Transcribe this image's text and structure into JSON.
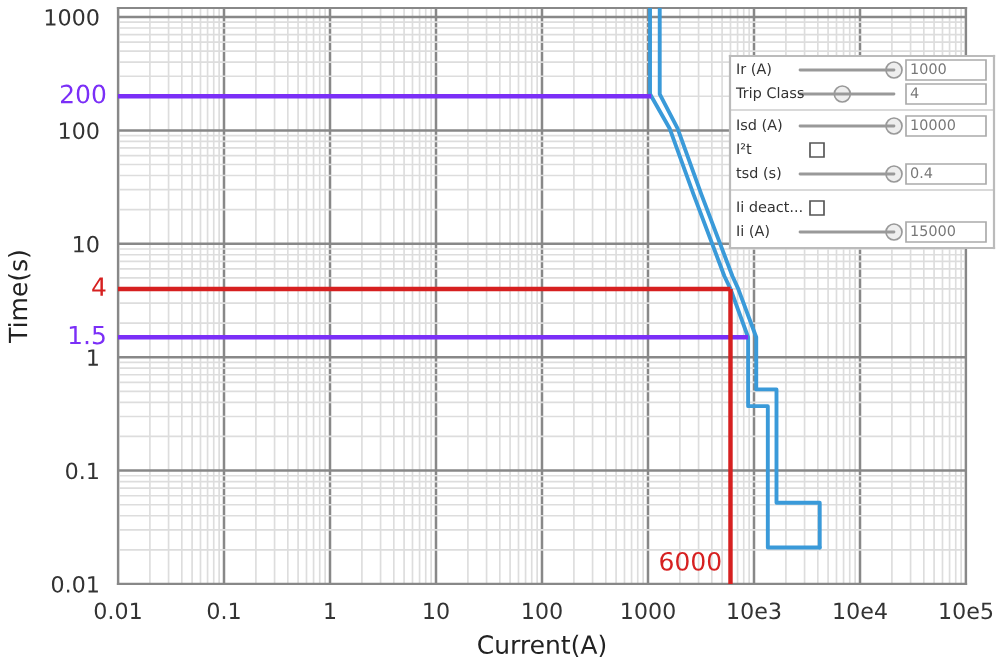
{
  "chart_data": [
    {
      "type": "line",
      "xlabel": "Current(A)",
      "ylabel": "Time(s)",
      "log": "xy",
      "grid": true,
      "xlim": [
        0.01,
        1000000
      ],
      "ylim": [
        0.01,
        1200
      ],
      "xticks": [
        0.01,
        0.1,
        1,
        10,
        100,
        1000,
        {
          "value": 10000,
          "label": "10e3"
        },
        {
          "value": 100000,
          "label": "10e4"
        },
        {
          "value": 1000000,
          "label": "10e5"
        }
      ],
      "yticks": [
        0.01,
        0.1,
        1,
        10,
        100,
        1000
      ],
      "series": [
        {
          "color": "#3a9ad9",
          "x": [
            1045,
            1045,
            1600,
            2700,
            5250,
            6000,
            8800,
            8800,
            13500,
            13500,
            41700
          ],
          "values": [
            1200,
            209,
            104,
            27,
            5.2,
            4,
            1.5,
            0.37,
            0.37,
            0.021,
            0.021
          ]
        },
        {
          "color": "#3a9ad9",
          "x": [
            1290,
            1290,
            1900,
            3200,
            6250,
            7100,
            10500,
            10500,
            16300,
            16300,
            41700,
            41700
          ],
          "values": [
            1200,
            209,
            104,
            27,
            5.2,
            4,
            1.5,
            0.52,
            0.52,
            0.052,
            0.052,
            0.021
          ]
        }
      ],
      "ref_lines": [
        {
          "axis": "y",
          "value": 200,
          "label": "200",
          "color": "#7b2ff7"
        },
        {
          "axis": "y",
          "value": 4,
          "label": "4",
          "color": "#d62020"
        },
        {
          "axis": "y",
          "value": 1.5,
          "label": "1.5",
          "color": "#7b2ff7"
        },
        {
          "axis": "x",
          "value": 6000,
          "label": "6000",
          "color": "#d62020"
        }
      ]
    },
    {
      "type": "other",
      "annotations": [
        "Ir (A)",
        "1000",
        "Trip Class",
        "4",
        "Isd (A)",
        "10000",
        "I²t",
        "tsd (s)",
        "0.4",
        "Ii deact...",
        "Ii (A)",
        "15000"
      ]
    }
  ]
}
